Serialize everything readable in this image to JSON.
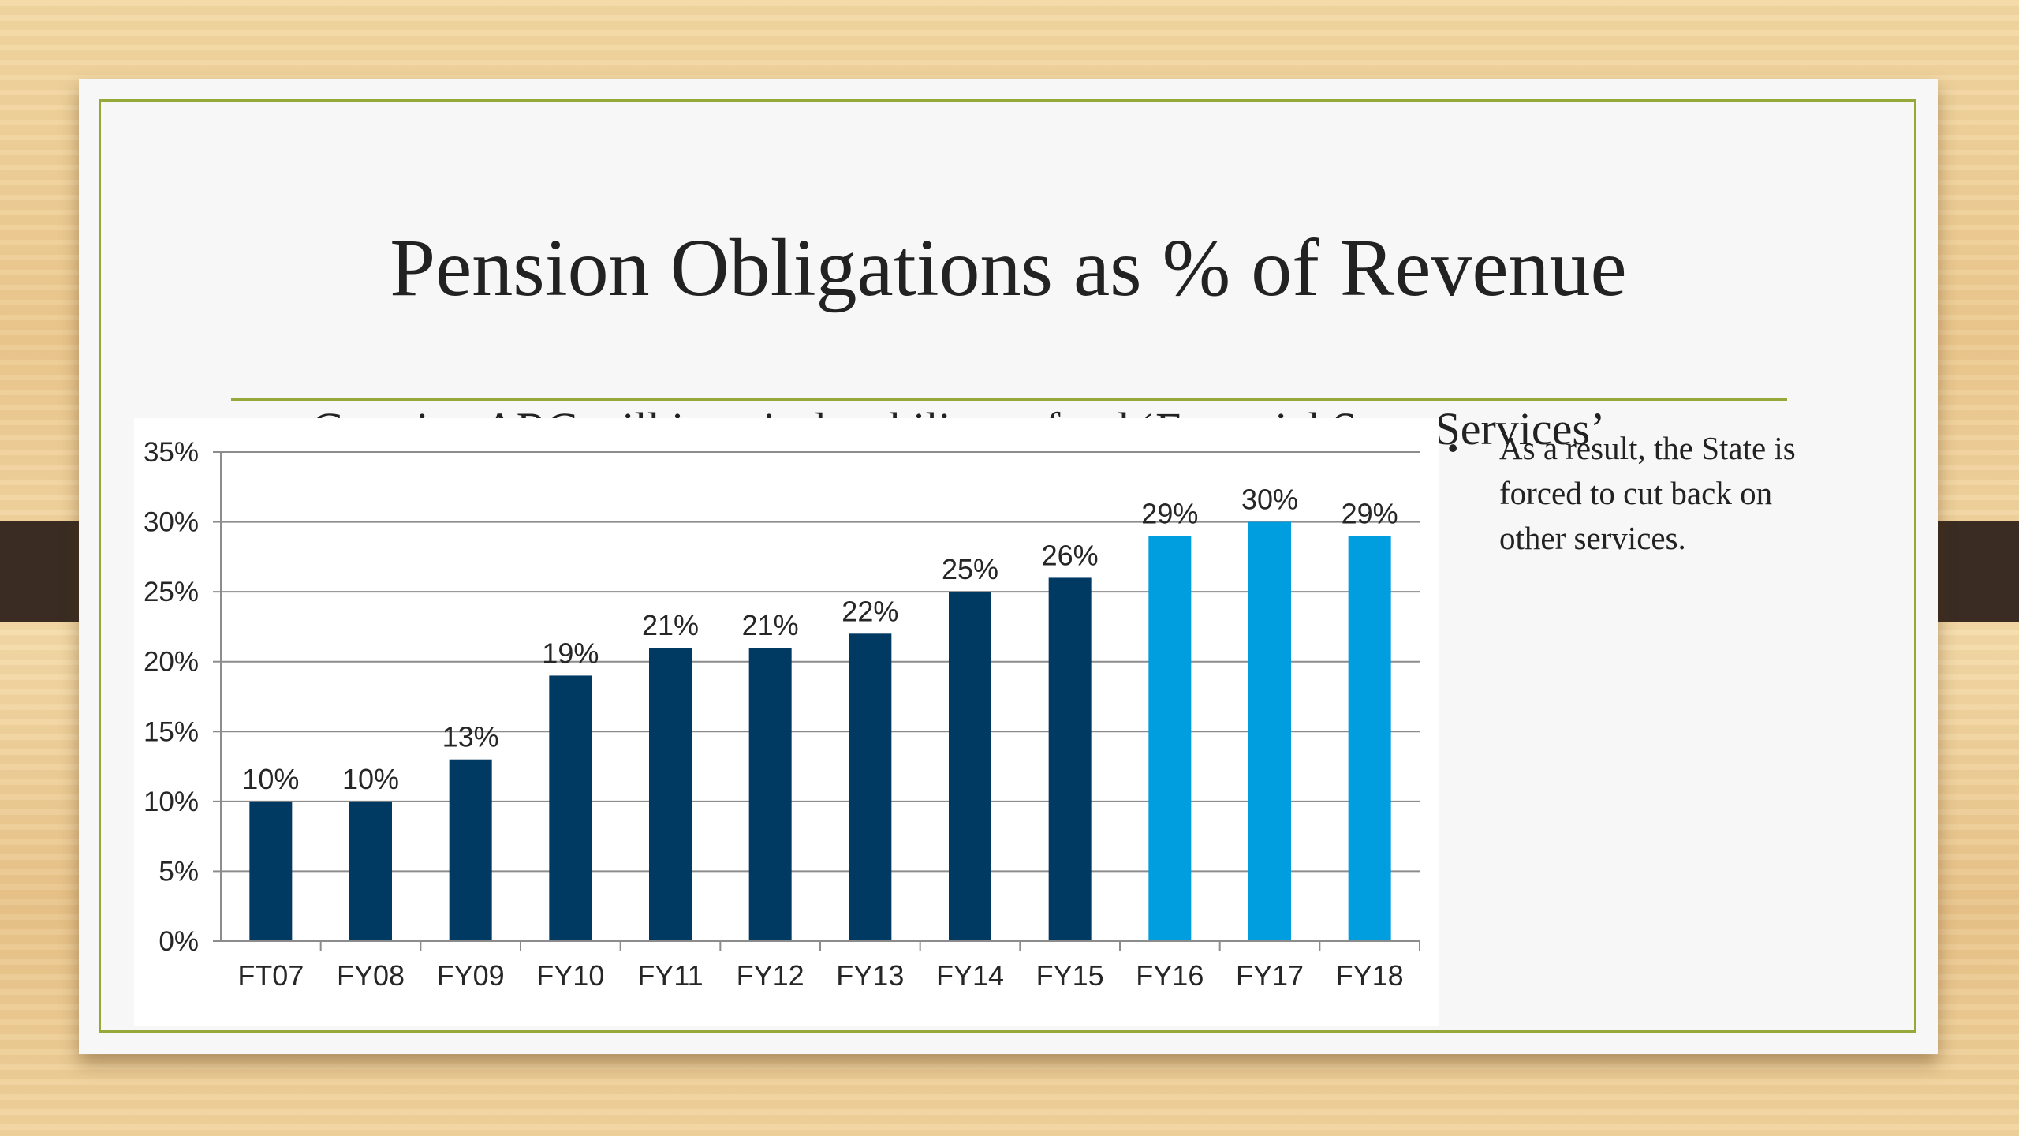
{
  "slide": {
    "title": "Pension Obligations as % of Revenue",
    "subtitle_bullet": "•",
    "subtitle": "Growing ARC will impair the ability to fund ‘Essential State Services’",
    "side_bullet_marker": "•",
    "side_text": "As a result, the State is forced to cut back on other services."
  },
  "colors": {
    "frame": "#95a83a",
    "bar_dark": "#003a63",
    "bar_light": "#009ddf",
    "grid": "#8c8c8c"
  },
  "chart_data": {
    "type": "bar",
    "title": "",
    "xlabel": "",
    "ylabel": "",
    "ylim": [
      0,
      35
    ],
    "y_ticks": [
      0,
      5,
      10,
      15,
      20,
      25,
      30,
      35
    ],
    "y_tick_labels": [
      "0%",
      "5%",
      "10%",
      "15%",
      "20%",
      "25%",
      "30%",
      "35%"
    ],
    "grid": true,
    "categories": [
      "FT07",
      "FY08",
      "FY09",
      "FY10",
      "FY11",
      "FY12",
      "FY13",
      "FY14",
      "FY15",
      "FY16",
      "FY17",
      "FY18"
    ],
    "values": [
      10,
      10,
      13,
      19,
      21,
      21,
      22,
      25,
      26,
      29,
      30,
      29
    ],
    "value_labels": [
      "10%",
      "10%",
      "13%",
      "19%",
      "21%",
      "21%",
      "22%",
      "25%",
      "26%",
      "29%",
      "30%",
      "29%"
    ],
    "bar_colors": [
      "#003a63",
      "#003a63",
      "#003a63",
      "#003a63",
      "#003a63",
      "#003a63",
      "#003a63",
      "#003a63",
      "#003a63",
      "#009ddf",
      "#009ddf",
      "#009ddf"
    ]
  }
}
